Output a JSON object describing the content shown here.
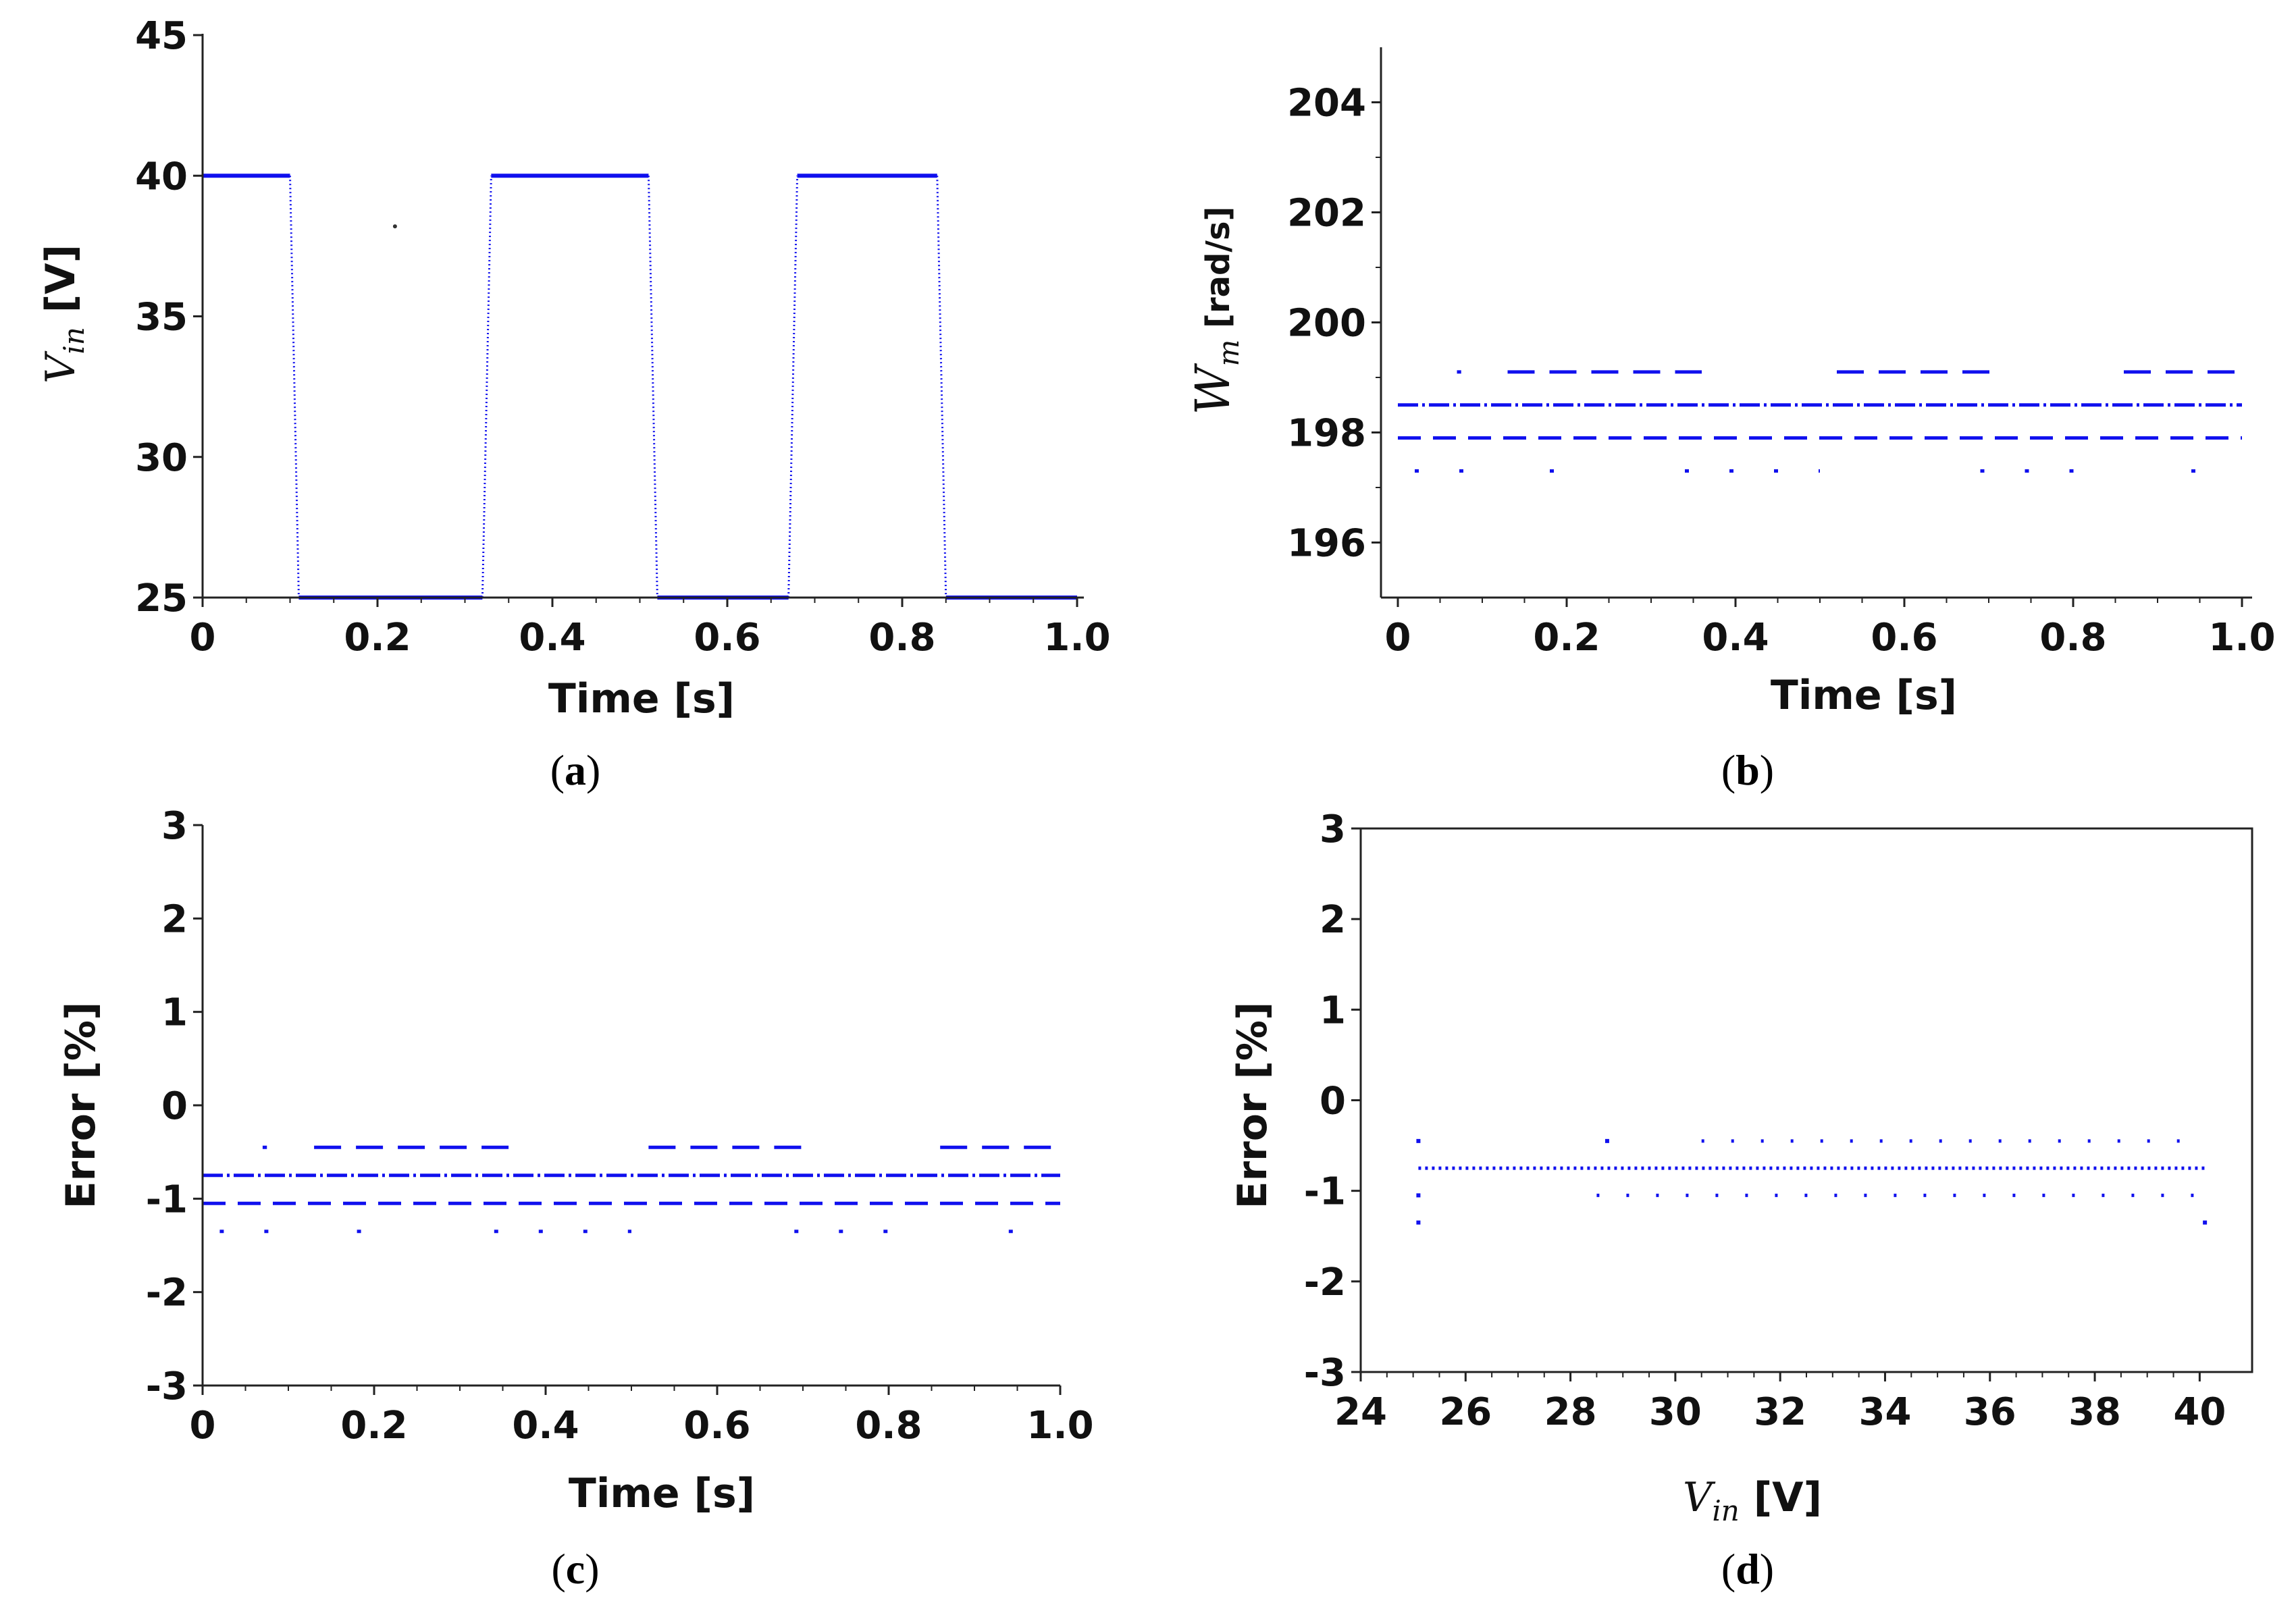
{
  "colors": {
    "series": "#1010ee",
    "axis": "#222222"
  },
  "chart_data": [
    {
      "id": "a",
      "type": "scatter",
      "caption": "a",
      "xlabel": "Time [s]",
      "ylabel_sym": "V",
      "ylabel_sub": "in",
      "ylabel_unit": " [V]",
      "xlim": [
        0,
        1
      ],
      "ylim": [
        25,
        45
      ],
      "xticks": [
        "0",
        "0.2",
        "0.4",
        "0.6",
        "0.8",
        "1.0"
      ],
      "xtick_values": [
        0,
        0.2,
        0.4,
        0.6,
        0.8,
        1.0
      ],
      "yticks": [
        "25",
        "30",
        "35",
        "40",
        "45"
      ],
      "ytick_values": [
        25,
        30,
        35,
        40,
        45
      ],
      "series": [
        {
          "name": "V_in",
          "segments": [
            {
              "x": [
                0,
                0.1
              ],
              "y": [
                40,
                40
              ]
            },
            {
              "x": [
                0.1,
                0.11
              ],
              "y": [
                40,
                25
              ]
            },
            {
              "x": [
                0.11,
                0.32
              ],
              "y": [
                25,
                25
              ]
            },
            {
              "x": [
                0.32,
                0.33
              ],
              "y": [
                25,
                40
              ]
            },
            {
              "x": [
                0.33,
                0.51
              ],
              "y": [
                40,
                40
              ]
            },
            {
              "x": [
                0.51,
                0.52
              ],
              "y": [
                40,
                25
              ]
            },
            {
              "x": [
                0.52,
                0.67
              ],
              "y": [
                25,
                25
              ]
            },
            {
              "x": [
                0.67,
                0.68
              ],
              "y": [
                25,
                40
              ]
            },
            {
              "x": [
                0.68,
                0.84
              ],
              "y": [
                40,
                40
              ]
            },
            {
              "x": [
                0.84,
                0.85
              ],
              "y": [
                40,
                25
              ]
            },
            {
              "x": [
                0.85,
                1.0
              ],
              "y": [
                25,
                25
              ]
            }
          ],
          "points": {
            "x": [
              0.22
            ],
            "y": [
              38.2
            ]
          }
        }
      ]
    },
    {
      "id": "b",
      "type": "scatter",
      "caption": "b",
      "xlabel": "Time [s]",
      "ylabel_sym": "W",
      "ylabel_sub": "m",
      "ylabel_unit": " [rad/s]",
      "xlim": [
        0,
        1
      ],
      "ylim": [
        195,
        205
      ],
      "xticks": [
        "0",
        "0.2",
        "0.4",
        "0.6",
        "0.8",
        "1.0"
      ],
      "xtick_values": [
        0,
        0.2,
        0.4,
        0.6,
        0.8,
        1.0
      ],
      "yticks": [
        "196",
        "198",
        "200",
        "202",
        "204"
      ],
      "ytick_values": [
        196,
        198,
        200,
        202,
        204
      ],
      "series": [
        {
          "name": "W_m",
          "levels": [
            {
              "y": 199.1,
              "segments": [
                [
                  0.07,
                  0.075
                ],
                [
                  0.13,
                  0.36
                ],
                [
                  0.52,
                  0.71
                ],
                [
                  0.86,
                  1.0
                ]
              ]
            },
            {
              "y": 198.5,
              "segments": [
                [
                  0.0,
                  1.0
                ]
              ]
            },
            {
              "y": 197.9,
              "segments": [
                [
                  0.0,
                  1.0
                ]
              ]
            },
            {
              "y": 197.3,
              "segments": [
                [
                  0.02,
                  0.09
                ],
                [
                  0.18,
                  0.185
                ],
                [
                  0.34,
                  0.5
                ],
                [
                  0.69,
                  0.82
                ],
                [
                  0.94,
                  0.945
                ]
              ]
            }
          ]
        }
      ]
    },
    {
      "id": "c",
      "type": "scatter",
      "caption": "c",
      "xlabel": "Time [s]",
      "ylabel_text": "Error  [%]",
      "xlim": [
        0,
        1
      ],
      "ylim": [
        -3,
        3
      ],
      "xticks": [
        "0",
        "0.2",
        "0.4",
        "0.6",
        "0.8",
        "1.0"
      ],
      "xtick_values": [
        0,
        0.2,
        0.4,
        0.6,
        0.8,
        1.0
      ],
      "yticks": [
        "-3",
        "-2",
        "-1",
        "0",
        "1",
        "2",
        "3"
      ],
      "ytick_values": [
        -3,
        -2,
        -1,
        0,
        1,
        2,
        3
      ],
      "series": [
        {
          "name": "Error",
          "levels": [
            {
              "y": -0.45,
              "segments": [
                [
                  0.07,
                  0.075
                ],
                [
                  0.13,
                  0.36
                ],
                [
                  0.52,
                  0.71
                ],
                [
                  0.86,
                  1.0
                ]
              ]
            },
            {
              "y": -0.75,
              "segments": [
                [
                  0.0,
                  1.0
                ]
              ]
            },
            {
              "y": -1.05,
              "segments": [
                [
                  0.0,
                  1.0
                ]
              ]
            },
            {
              "y": -1.35,
              "segments": [
                [
                  0.02,
                  0.09
                ],
                [
                  0.18,
                  0.185
                ],
                [
                  0.34,
                  0.5
                ],
                [
                  0.69,
                  0.82
                ],
                [
                  0.94,
                  0.945
                ]
              ]
            }
          ]
        }
      ]
    },
    {
      "id": "d",
      "type": "scatter",
      "caption": "d",
      "xlabel_sym": "V",
      "xlabel_sub": "in",
      "xlabel_unit": " [V]",
      "ylabel_text": "Error  [%]",
      "xlim": [
        24,
        41
      ],
      "ylim": [
        -3,
        3
      ],
      "xticks": [
        "24",
        "26",
        "28",
        "30",
        "32",
        "34",
        "36",
        "38",
        "40"
      ],
      "xtick_values": [
        24,
        26,
        28,
        30,
        32,
        34,
        36,
        38,
        40
      ],
      "yticks": [
        "-3",
        "-2",
        "-1",
        "0",
        "1",
        "2",
        "3"
      ],
      "ytick_values": [
        -3,
        -2,
        -1,
        0,
        1,
        2,
        3
      ],
      "series": [
        {
          "name": "Error vs V_in",
          "levels": [
            {
              "y": -0.45,
              "segments": [
                [
                  25.1,
                  25.1
                ],
                [
                  28.7,
                  28.7
                ],
                [
                  30.5,
                  40.1
                ]
              ]
            },
            {
              "y": -0.75,
              "segments": [
                [
                  25.1,
                  40.1
                ]
              ]
            },
            {
              "y": -1.05,
              "segments": [
                [
                  25.1,
                  25.1
                ],
                [
                  28.5,
                  40.1
                ]
              ]
            },
            {
              "y": -1.35,
              "segments": [
                [
                  25.1,
                  25.1
                ],
                [
                  40.1,
                  40.1
                ]
              ]
            }
          ]
        }
      ]
    }
  ]
}
